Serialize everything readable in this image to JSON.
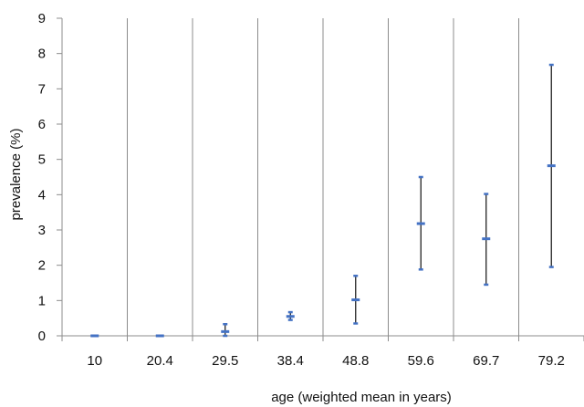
{
  "chart_data": {
    "type": "scatter",
    "xlabel": "age (weighted mean in years)",
    "ylabel": "prevalence (%)",
    "categories": [
      "10",
      "20.4",
      "29.5",
      "38.4",
      "48.8",
      "59.6",
      "69.7",
      "79.2"
    ],
    "series": [
      {
        "values": [
          0.0,
          0.0,
          0.12,
          0.55,
          1.02,
          3.18,
          2.75,
          4.82
        ],
        "lower": [
          0.0,
          0.0,
          0.0,
          0.45,
          0.35,
          1.88,
          1.45,
          1.95
        ],
        "upper": [
          0.0,
          0.0,
          0.33,
          0.67,
          1.7,
          4.5,
          4.02,
          7.68
        ]
      }
    ],
    "ylim": [
      0,
      9
    ],
    "yticks": [
      "0",
      "1",
      "2",
      "3",
      "4",
      "5",
      "6",
      "7",
      "8",
      "9"
    ],
    "grid": "vertical category separators",
    "colors": {
      "marker": "#4472c4",
      "error_bar": "#222222",
      "separator": "#8c8c8c",
      "axis": "#8c8c8c"
    }
  }
}
